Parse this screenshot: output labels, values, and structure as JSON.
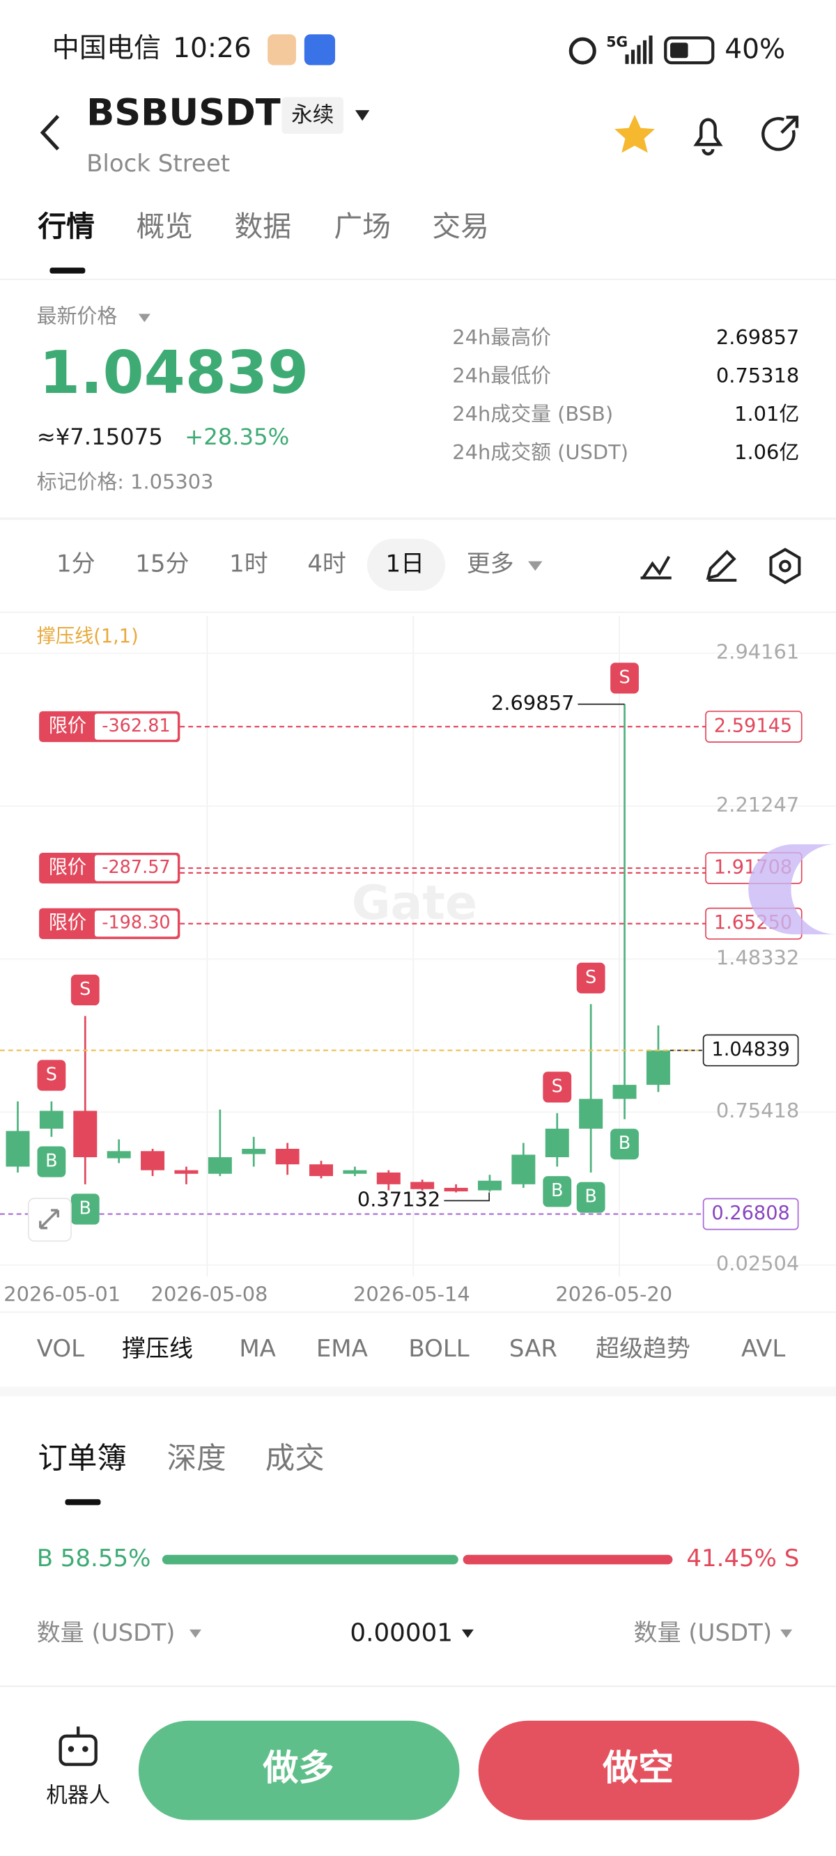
{
  "status_bar": {
    "carrier": "中国电信",
    "time": "10:26",
    "network": "5G",
    "battery": "40%"
  },
  "header": {
    "symbol": "BSBUSDT",
    "contract": "永续",
    "name": "Block Street"
  },
  "tabs": [
    "行情",
    "概览",
    "数据",
    "广场",
    "交易"
  ],
  "ticker": {
    "last_price_label": "最新价格",
    "last_price": "1.04839",
    "cny": "≈¥7.15075",
    "change": "+28.35%",
    "mark_price": "标记价格: 1.05303",
    "stats": [
      {
        "label": "24h最高价",
        "value": "2.69857"
      },
      {
        "label": "24h最低价",
        "value": "0.75318"
      },
      {
        "label": "24h成交量 (BSB)",
        "value": "1.01亿"
      },
      {
        "label": "24h成交额 (USDT)",
        "value": "1.06亿"
      }
    ]
  },
  "intervals": [
    "1分",
    "15分",
    "1时",
    "4时",
    "1日",
    "更多"
  ],
  "chart_data": {
    "type": "candlestick",
    "indicator_label": "撑压线(1,1)",
    "watermark": "Gate",
    "categories": [
      null,
      "2026-05-01",
      null,
      null,
      null,
      null,
      "2026-05-08",
      null,
      null,
      null,
      null,
      null,
      "2026-05-14",
      null,
      null,
      null,
      null,
      null,
      "2026-05-20",
      null
    ],
    "open": [
      0.494,
      0.675,
      0.76,
      0.534,
      0.568,
      0.477,
      0.46,
      0.554,
      0.579,
      0.505,
      0.46,
      0.466,
      0.421,
      0.393,
      0.381,
      0.41,
      0.539,
      0.675,
      0.817,
      0.884
    ],
    "high": [
      0.805,
      0.805,
      1.212,
      0.624,
      0.579,
      0.494,
      0.766,
      0.636,
      0.607,
      0.522,
      0.494,
      0.477,
      0.432,
      0.41,
      0.455,
      0.607,
      0.749,
      1.269,
      2.69857,
      1.167
    ],
    "low": [
      0.466,
      0.636,
      0.41,
      0.511,
      0.449,
      0.41,
      0.449,
      0.494,
      0.455,
      0.438,
      0.449,
      0.381,
      0.38,
      0.37132,
      0.375,
      0.393,
      0.494,
      0.466,
      0.72,
      0.85
    ],
    "close": [
      0.664,
      0.76,
      0.539,
      0.568,
      0.477,
      0.46,
      0.539,
      0.579,
      0.505,
      0.449,
      0.477,
      0.41,
      0.387,
      0.376,
      0.427,
      0.551,
      0.675,
      0.817,
      0.884,
      1.04839
    ],
    "up_color": "#4fb37e",
    "down_color": "#e2475b",
    "ylim": [
      -0.03,
      3.12
    ],
    "yticks": [
      2.94161,
      2.21247,
      1.48332,
      0.75418,
      0.02504
    ],
    "grid": true,
    "sell_marker": "S",
    "buy_marker": "B",
    "orders": [
      {
        "label": "限价",
        "qty": "-362.81",
        "price": 2.59145
      },
      {
        "label": "限价",
        "qty": "-287.57",
        "price": 1.91708
      },
      {
        "label": "限价",
        "qty": "-198.30",
        "price": {
          "value": 1.6525,
          "label": "1.65250"
        }
      }
    ],
    "support_line": 0.26808
  },
  "indicators": [
    "VOL",
    "撑压线",
    "MA",
    "EMA",
    "BOLL",
    "SAR",
    "超级趋势",
    "AVL"
  ],
  "orderbook": {
    "tabs": [
      "订单簿",
      "深度",
      "成交"
    ],
    "buy_ratio": {
      "value": 58.55,
      "label": "B 58.55%"
    },
    "sell_ratio": {
      "value": 41.45,
      "label": "41.45% S"
    },
    "left_column": "数量 (USDT)",
    "precision": "0.00001",
    "right_column": "数量 (USDT)"
  },
  "bottom_bar": {
    "robot": "机器人",
    "long": "做多",
    "short": "做空"
  }
}
